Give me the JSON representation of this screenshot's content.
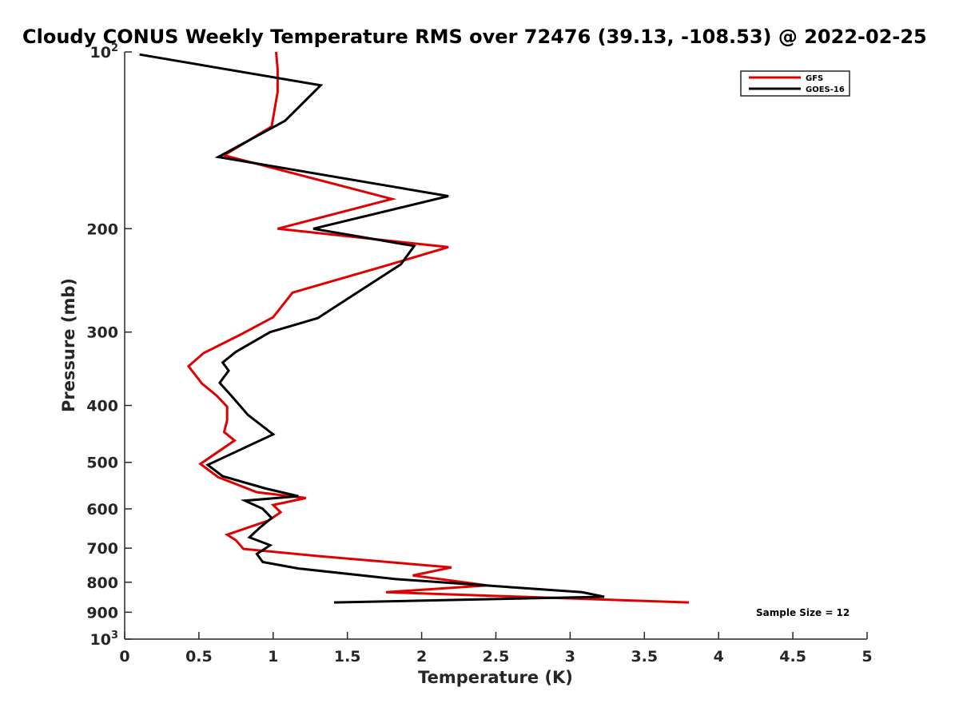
{
  "chart_data": {
    "type": "line",
    "title": "Cloudy CONUS Weekly Temperature RMS over 72476 (39.13, -108.53) @ 2022-02-25",
    "xlabel": "Temperature (K)",
    "ylabel": "Pressure (mb)",
    "xlim": [
      0,
      5
    ],
    "ylim": [
      100,
      1000
    ],
    "y_scale": "log",
    "y_reversed": true,
    "grid": false,
    "legend_position": "top-right",
    "x_ticks": [
      0,
      0.5,
      1,
      1.5,
      2,
      2.5,
      3,
      3.5,
      4,
      4.5,
      5
    ],
    "x_tick_labels": [
      "0",
      "0.5",
      "1",
      "1.5",
      "2",
      "2.5",
      "3",
      "3.5",
      "4",
      "4.5",
      "5"
    ],
    "y_ticks": [
      100,
      200,
      300,
      400,
      500,
      600,
      700,
      800,
      900,
      1000
    ],
    "y_tick_labels": [
      {
        "base": "10",
        "exp": "2"
      },
      {
        "base": "200",
        "exp": ""
      },
      {
        "base": "300",
        "exp": ""
      },
      {
        "base": "400",
        "exp": ""
      },
      {
        "base": "500",
        "exp": ""
      },
      {
        "base": "600",
        "exp": ""
      },
      {
        "base": "700",
        "exp": ""
      },
      {
        "base": "800",
        "exp": ""
      },
      {
        "base": "900",
        "exp": ""
      },
      {
        "base": "10",
        "exp": "3"
      }
    ],
    "annotation": "Sample Size = 12",
    "series": [
      {
        "name": "GFS",
        "color": "#e00000",
        "x": [
          1.02,
          1.03,
          1.03,
          0.99,
          0.67,
          1.8,
          1.03,
          2.18,
          1.74,
          1.13,
          1.0,
          0.78,
          0.53,
          0.43,
          0.52,
          0.62,
          0.69,
          0.69,
          0.67,
          0.74,
          0.51,
          0.63,
          0.89,
          1.22,
          1.0,
          1.05,
          0.97,
          0.69,
          0.75,
          0.8,
          1.3,
          2.2,
          1.94,
          2.44,
          1.76,
          3.8
        ],
        "y": [
          100,
          107,
          117,
          134,
          150,
          178,
          200,
          215,
          232,
          257,
          283,
          303,
          326,
          343,
          367,
          385,
          402,
          424,
          444,
          459,
          503,
          530,
          562,
          575,
          591,
          608,
          628,
          664,
          679,
          702,
          722,
          755,
          779,
          810,
          832,
          866
        ]
      },
      {
        "name": "GOES-16",
        "color": "#000000",
        "x": [
          0.1,
          1.32,
          1.08,
          0.63,
          2.18,
          1.27,
          1.95,
          1.86,
          1.3,
          0.98,
          0.75,
          0.66,
          0.7,
          0.64,
          0.73,
          0.83,
          1.0,
          0.56,
          0.66,
          0.95,
          1.17,
          0.81,
          0.93,
          0.99,
          0.91,
          0.84,
          0.98,
          0.89,
          0.93,
          1.17,
          1.82,
          3.08,
          3.23,
          1.41
        ],
        "y": [
          101,
          114,
          131,
          151,
          176,
          200,
          214,
          230,
          284,
          300,
          324,
          338,
          349,
          366,
          388,
          415,
          448,
          505,
          528,
          554,
          571,
          581,
          600,
          622,
          646,
          671,
          692,
          716,
          739,
          758,
          790,
          832,
          847,
          866
        ]
      }
    ]
  }
}
